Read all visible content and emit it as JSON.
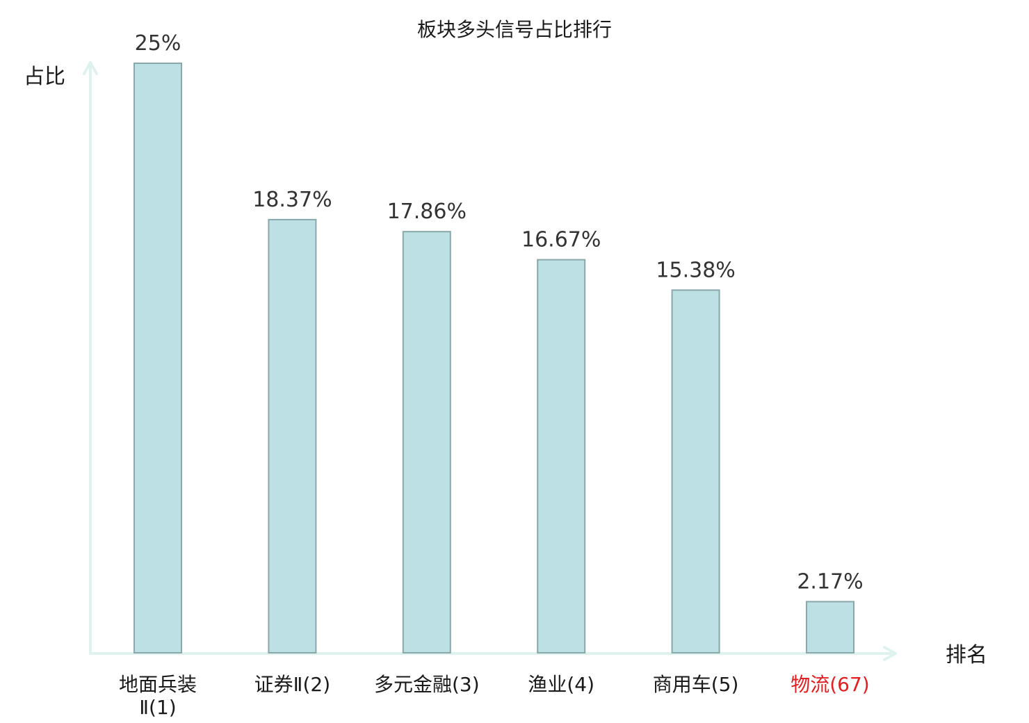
{
  "chart_data": {
    "type": "bar",
    "title": "板块多头信号占比排行",
    "ylabel": "占比",
    "xlabel": "排名",
    "ylim": [
      0,
      25
    ],
    "grid": false,
    "categories": [
      {
        "name": "地面兵装Ⅱ",
        "rank": "(1)",
        "label_lines": [
          "地面兵装",
          "Ⅱ(1)"
        ],
        "highlight": false
      },
      {
        "name": "证券Ⅱ",
        "rank": "(2)",
        "label_lines": [
          "证券Ⅱ(2)"
        ],
        "highlight": false
      },
      {
        "name": "多元金融",
        "rank": "(3)",
        "label_lines": [
          "多元金融(3)"
        ],
        "highlight": false
      },
      {
        "name": "渔业",
        "rank": "(4)",
        "label_lines": [
          "渔业(4)"
        ],
        "highlight": false
      },
      {
        "name": "商用车",
        "rank": "(5)",
        "label_lines": [
          "商用车(5)"
        ],
        "highlight": false
      },
      {
        "name": "物流",
        "rank": "(67)",
        "label_lines": [
          "物流(67)"
        ],
        "highlight": true
      }
    ],
    "values": [
      25,
      18.37,
      17.86,
      16.67,
      15.38,
      2.17
    ],
    "value_labels": [
      "25%",
      "18.37%",
      "17.86%",
      "16.67%",
      "15.38%",
      "2.17%"
    ],
    "colors": {
      "bar_fill": "#bce0e3",
      "bar_stroke": "#8aa7aa",
      "axis": "#dff2ee",
      "highlight": "#e02020"
    }
  }
}
